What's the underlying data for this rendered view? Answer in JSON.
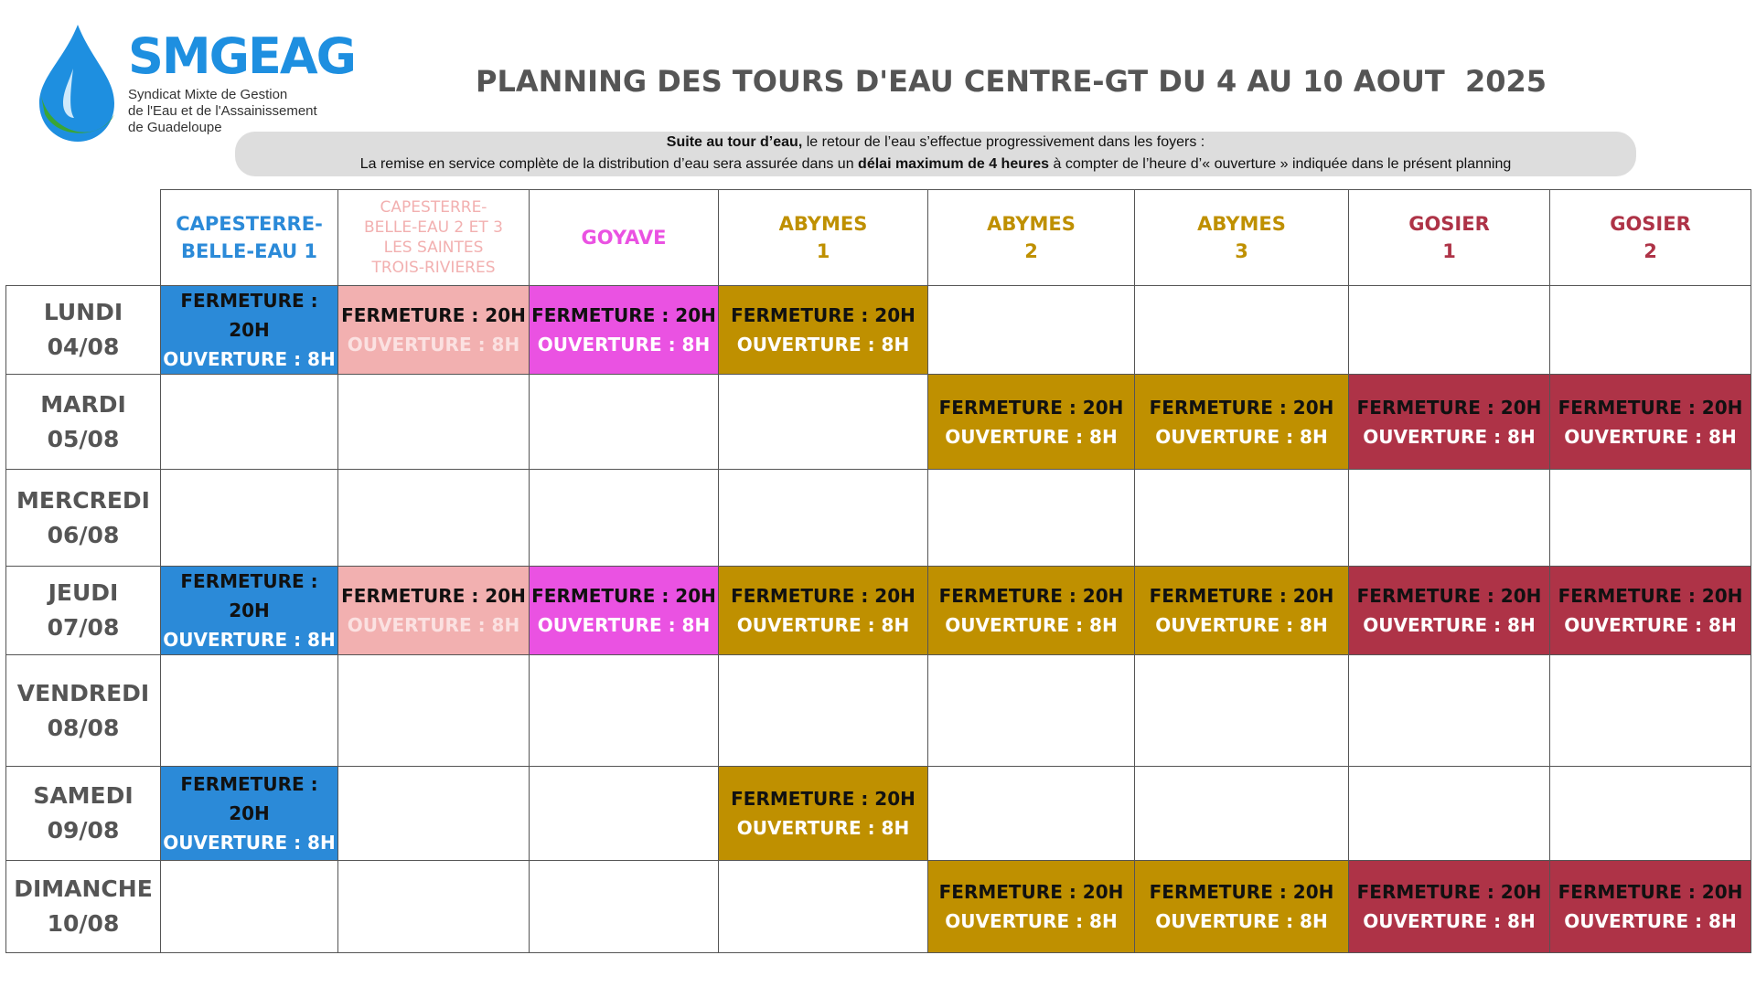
{
  "header": {
    "logo_name": "SMGEAG",
    "logo_lines": [
      "Syndicat Mixte de Gestion",
      "de l'Eau et de l'Assainissement",
      "de Guadeloupe"
    ],
    "title": "PLANNING DES TOURS D'EAU CENTRE-GT DU 4 AU 10 AOUT  2025"
  },
  "notice": {
    "lines": [
      [
        {
          "text": "Suite au tour d’eau,",
          "bold": true
        },
        {
          "text": " le retour de l’eau s’effectue progressivement dans les foyers :",
          "bold": false
        }
      ],
      [
        {
          "text": "La remise en service complète de la distribution d’eau sera assurée dans un ",
          "bold": false
        },
        {
          "text": "délai maximum de 4 heures",
          "bold": true
        },
        {
          "text": " à compter de l’heure d’« ouverture » indiquée dans le présent planning",
          "bold": false
        }
      ]
    ]
  },
  "table": {
    "columns": [
      {
        "lines": [
          "CAPESTERRE-",
          "BELLE-EAU 1"
        ],
        "color": "#2b8ad8"
      },
      {
        "lines": [
          "CAPESTERRE-",
          "BELLE-EAU 2 ET 3",
          "LES SAINTES",
          "TROIS-RIVIERES"
        ],
        "color": "#f2b0b0"
      },
      {
        "lines": [
          "GOYAVE"
        ],
        "color": "#ea52e2"
      },
      {
        "lines": [
          "ABYMES",
          "1"
        ],
        "color": "#bf9000"
      },
      {
        "lines": [
          "ABYMES",
          "2"
        ],
        "color": "#bf9000"
      },
      {
        "lines": [
          "ABYMES",
          "3"
        ],
        "color": "#bf9000"
      },
      {
        "lines": [
          "GOSIER",
          "1"
        ],
        "color": "#ae3347"
      },
      {
        "lines": [
          "GOSIER",
          "2"
        ],
        "color": "#ae3347"
      }
    ],
    "rows": [
      {
        "day": [
          "LUNDI",
          "04/08"
        ],
        "cells": [
          {
            "closing": "FERMETURE : 20H",
            "opening": "OUVERTURE : 8H"
          },
          {
            "closing": "FERMETURE : 20H",
            "opening": "OUVERTURE : 8H"
          },
          {
            "closing": "FERMETURE : 20H",
            "opening": "OUVERTURE : 8H"
          },
          {
            "closing": "FERMETURE : 20H",
            "opening": "OUVERTURE : 8H"
          },
          null,
          null,
          null,
          null
        ]
      },
      {
        "day": [
          "MARDI",
          "05/08"
        ],
        "cells": [
          null,
          null,
          null,
          null,
          {
            "closing": "FERMETURE : 20H",
            "opening": "OUVERTURE : 8H"
          },
          {
            "closing": "FERMETURE : 20H",
            "opening": "OUVERTURE : 8H"
          },
          {
            "closing": "FERMETURE : 20H",
            "opening": "OUVERTURE : 8H"
          },
          {
            "closing": "FERMETURE : 20H",
            "opening": "OUVERTURE : 8H"
          }
        ]
      },
      {
        "day": [
          "MERCREDI",
          "06/08"
        ],
        "cells": [
          null,
          null,
          null,
          null,
          null,
          null,
          null,
          null
        ]
      },
      {
        "day": [
          "JEUDI",
          "07/08"
        ],
        "cells": [
          {
            "closing": "FERMETURE : 20H",
            "opening": "OUVERTURE : 8H"
          },
          {
            "closing": "FERMETURE : 20H",
            "opening": "OUVERTURE : 8H"
          },
          {
            "closing": "FERMETURE : 20H",
            "opening": "OUVERTURE : 8H"
          },
          {
            "closing": "FERMETURE : 20H",
            "opening": "OUVERTURE : 8H"
          },
          {
            "closing": "FERMETURE : 20H",
            "opening": "OUVERTURE : 8H"
          },
          {
            "closing": "FERMETURE : 20H",
            "opening": "OUVERTURE : 8H"
          },
          {
            "closing": "FERMETURE : 20H",
            "opening": "OUVERTURE : 8H"
          },
          {
            "closing": "FERMETURE : 20H",
            "opening": "OUVERTURE : 8H"
          }
        ]
      },
      {
        "day": [
          "VENDREDI",
          "08/08"
        ],
        "cells": [
          null,
          null,
          null,
          null,
          null,
          null,
          null,
          null
        ]
      },
      {
        "day": [
          "SAMEDI",
          "09/08"
        ],
        "cells": [
          {
            "closing": "FERMETURE : 20H",
            "opening": "OUVERTURE : 8H"
          },
          null,
          null,
          {
            "closing": "FERMETURE : 20H",
            "opening": "OUVERTURE : 8H"
          },
          null,
          null,
          null,
          null
        ]
      },
      {
        "day": [
          "DIMANCHE",
          "10/08"
        ],
        "cells": [
          null,
          null,
          null,
          null,
          {
            "closing": "FERMETURE : 20H",
            "opening": "OUVERTURE : 8H"
          },
          {
            "closing": "FERMETURE : 20H",
            "opening": "OUVERTURE : 8H"
          },
          {
            "closing": "FERMETURE : 20H",
            "opening": "OUVERTURE : 8H"
          },
          {
            "closing": "FERMETURE : 20H",
            "opening": "OUVERTURE : 8H"
          }
        ]
      }
    ]
  }
}
